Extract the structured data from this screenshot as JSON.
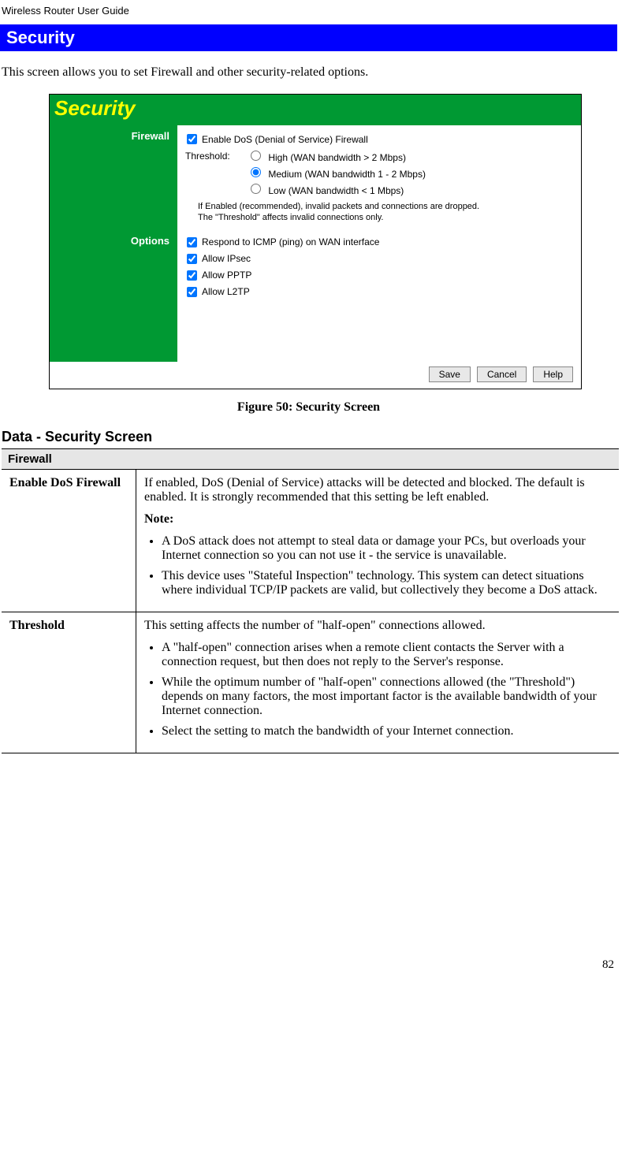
{
  "header": {
    "running": "Wireless Router User Guide",
    "title": "Security",
    "intro": "This screen allows you to set Firewall and other security-related options.",
    "figcap": "Figure 50: Security Screen",
    "subhead": "Data - Security Screen",
    "pagenum": "82"
  },
  "screenshot": {
    "title": "Security",
    "sidebar": {
      "firewall": "Firewall",
      "options": "Options"
    },
    "firewall": {
      "enable": "Enable DoS (Denial of Service) Firewall",
      "threshold_label": "Threshold:",
      "high": "High (WAN bandwidth > 2 Mbps)",
      "medium": "Medium (WAN bandwidth 1 - 2 Mbps)",
      "low": "Low (WAN bandwidth < 1 Mbps)",
      "fine1": "If Enabled (recommended), invalid packets and connections are dropped.",
      "fine2": "The \"Threshold\" affects invalid connections only."
    },
    "options": {
      "icmp": "Respond to ICMP (ping) on WAN interface",
      "ipsec": "Allow IPsec",
      "pptp": "Allow PPTP",
      "l2tp": "Allow L2TP"
    },
    "buttons": {
      "save": "Save",
      "cancel": "Cancel",
      "help": "Help"
    },
    "colors": {
      "bg": "#009933",
      "title": "#ffff00"
    }
  },
  "table": {
    "section": "Firewall",
    "rows": [
      {
        "label": "Enable DoS Firewall",
        "p1": "If enabled, DoS (Denial of Service) attacks will be detected and blocked. The default is enabled. It is strongly recommended that this setting be left enabled.",
        "note": "Note:",
        "b1": "A DoS attack does not attempt to steal data or damage your PCs, but overloads your Internet connection so you can not use it - the service is unavailable.",
        "b2": "This device uses \"Stateful Inspection\" technology. This system can detect situations where individual TCP/IP packets are valid, but collectively they become a DoS attack."
      },
      {
        "label": "Threshold",
        "p1": "This setting affects the number of \"half-open\" connections allowed.",
        "b1": "A \"half-open\" connection arises when a remote client contacts the Server with a connection request, but then does not reply to the Server's response.",
        "b2": "While the optimum number of \"half-open\" connections allowed (the \"Threshold\") depends on many factors, the most important factor is the available bandwidth of your Internet connection.",
        "b3": "Select the setting to match the bandwidth of your Internet connection."
      }
    ]
  }
}
